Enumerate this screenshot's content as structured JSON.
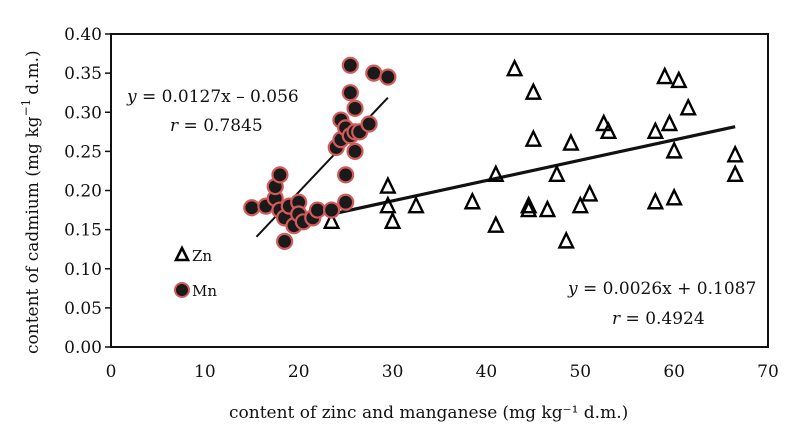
{
  "chart_data": {
    "type": "scatter",
    "xlabel": "content of zinc and manganese",
    "xlabel_unit": "(mg kg⁻¹ d.m.)",
    "ylabel_main": "content of cadmium (mg kg",
    "ylabel_sup": "−1",
    "ylabel_end": "d.m.)",
    "xlim": [
      0,
      70
    ],
    "ylim": [
      0,
      0.4
    ],
    "x_ticks": [
      "0",
      "10",
      "20",
      "30",
      "40",
      "50",
      "60",
      "70"
    ],
    "y_ticks": [
      "0.00",
      "0.05",
      "0.10",
      "0.15",
      "0.20",
      "0.25",
      "0.30",
      "0.35",
      "0.40"
    ],
    "grid": false,
    "legend_position": "left",
    "series": [
      {
        "name": "Zn",
        "marker": "triangle",
        "color": "#000000",
        "points": [
          [
            23.5,
            0.16
          ],
          [
            29.5,
            0.205
          ],
          [
            29.5,
            0.18
          ],
          [
            30,
            0.16
          ],
          [
            32.5,
            0.18
          ],
          [
            38.5,
            0.185
          ],
          [
            41,
            0.22
          ],
          [
            41,
            0.155
          ],
          [
            43,
            0.355
          ],
          [
            44.5,
            0.175
          ],
          [
            44.5,
            0.18
          ],
          [
            45,
            0.325
          ],
          [
            45,
            0.265
          ],
          [
            46.5,
            0.175
          ],
          [
            47.5,
            0.22
          ],
          [
            48.5,
            0.135
          ],
          [
            49,
            0.26
          ],
          [
            50,
            0.18
          ],
          [
            51,
            0.195
          ],
          [
            52.5,
            0.285
          ],
          [
            53,
            0.275
          ],
          [
            58,
            0.275
          ],
          [
            58,
            0.185
          ],
          [
            59,
            0.345
          ],
          [
            59.5,
            0.285
          ],
          [
            60,
            0.25
          ],
          [
            60,
            0.19
          ],
          [
            60.5,
            0.34
          ],
          [
            61.5,
            0.305
          ],
          [
            66.5,
            0.245
          ],
          [
            66.5,
            0.22
          ]
        ],
        "regression": {
          "slope": 0.0026,
          "intercept": 0.1087,
          "x_range": [
            23,
            66.5
          ]
        }
      },
      {
        "name": "Mn",
        "marker": "circle",
        "color": "#1a1a1a",
        "outline": "#d45a5a",
        "points": [
          [
            15,
            0.178
          ],
          [
            16.5,
            0.18
          ],
          [
            17.5,
            0.19
          ],
          [
            17.5,
            0.205
          ],
          [
            18,
            0.22
          ],
          [
            18,
            0.175
          ],
          [
            18.5,
            0.135
          ],
          [
            18.5,
            0.165
          ],
          [
            19,
            0.18
          ],
          [
            19.5,
            0.155
          ],
          [
            20,
            0.185
          ],
          [
            20,
            0.17
          ],
          [
            20.5,
            0.16
          ],
          [
            21.5,
            0.165
          ],
          [
            22,
            0.175
          ],
          [
            23.5,
            0.175
          ],
          [
            24,
            0.255
          ],
          [
            24.5,
            0.265
          ],
          [
            24.5,
            0.29
          ],
          [
            25,
            0.28
          ],
          [
            25,
            0.22
          ],
          [
            25,
            0.185
          ],
          [
            25.5,
            0.36
          ],
          [
            25.5,
            0.325
          ],
          [
            25.5,
            0.27
          ],
          [
            26,
            0.305
          ],
          [
            26,
            0.275
          ],
          [
            26,
            0.25
          ],
          [
            26.5,
            0.275
          ],
          [
            27.5,
            0.285
          ],
          [
            28,
            0.35
          ],
          [
            29.5,
            0.345
          ]
        ],
        "regression": {
          "slope": 0.0127,
          "intercept": -0.056,
          "x_range": [
            15.5,
            29.5
          ]
        }
      }
    ],
    "annotations": {
      "mn_equation": "y = 0.0127x – 0.056",
      "mn_r": "r = 0.7845",
      "zn_equation": "y = 0.0026x + 0.1087",
      "zn_r": "r = 0.4924"
    },
    "legend": [
      {
        "label": "Zn",
        "marker": "triangle"
      },
      {
        "label": "Mn",
        "marker": "circle"
      }
    ]
  }
}
